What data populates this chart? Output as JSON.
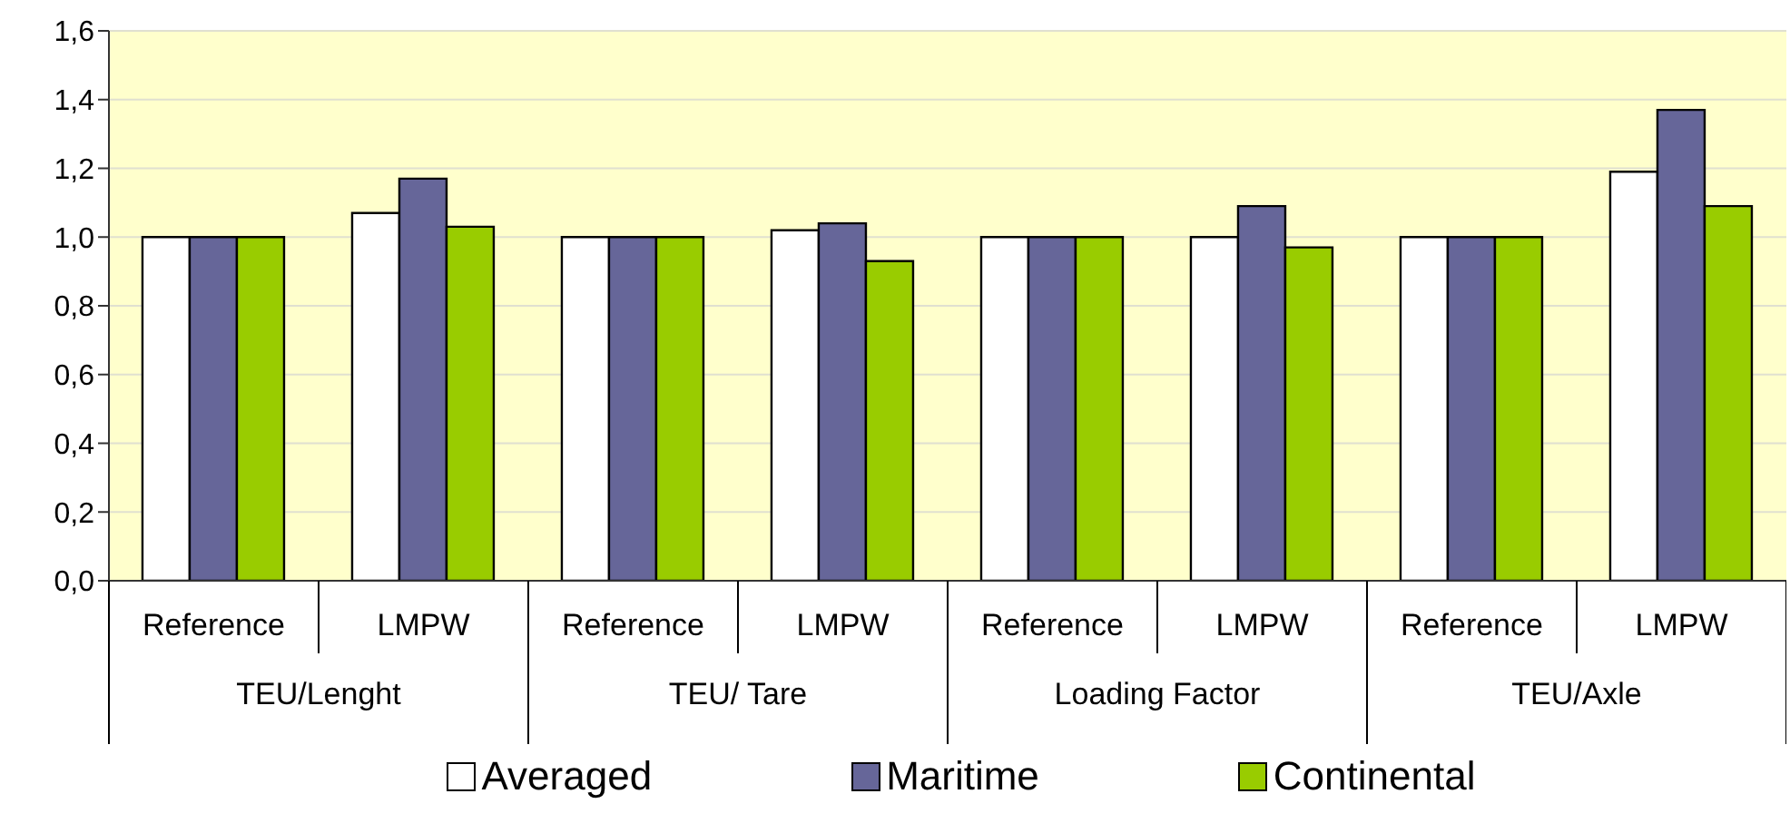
{
  "chart_data": {
    "type": "bar",
    "categories": [
      "Reference",
      "LMPW",
      "Reference",
      "LMPW",
      "Reference",
      "LMPW",
      "Reference",
      "LMPW"
    ],
    "annotations": [
      "TEU/Lenght",
      "TEU/ Tare",
      "Loading Factor",
      "TEU/Axle"
    ],
    "series": [
      {
        "name": "Averaged",
        "color": "#ffffff",
        "values": [
          1.0,
          1.07,
          1.0,
          1.02,
          1.0,
          1.0,
          1.0,
          1.19
        ]
      },
      {
        "name": "Maritime",
        "color": "#666699",
        "values": [
          1.0,
          1.17,
          1.0,
          1.04,
          1.0,
          1.09,
          1.0,
          1.37
        ]
      },
      {
        "name": "Continental",
        "color": "#99cc00",
        "values": [
          1.0,
          1.03,
          1.0,
          0.93,
          1.0,
          0.97,
          1.0,
          1.09
        ]
      }
    ],
    "ylim": [
      0,
      1.6
    ],
    "yticks": [
      {
        "value": 0,
        "label": "0,0"
      },
      {
        "value": 0.2,
        "label": "0,2"
      },
      {
        "value": 0.4,
        "label": "0,4"
      },
      {
        "value": 0.6,
        "label": "0,6"
      },
      {
        "value": 0.8,
        "label": "0,8"
      },
      {
        "value": 1,
        "label": "1,0"
      },
      {
        "value": 1.2,
        "label": "1,2"
      },
      {
        "value": 1.4,
        "label": "1,4"
      },
      {
        "value": 1.6,
        "label": "1,6"
      }
    ],
    "grid": "y",
    "legend": "bottom"
  }
}
